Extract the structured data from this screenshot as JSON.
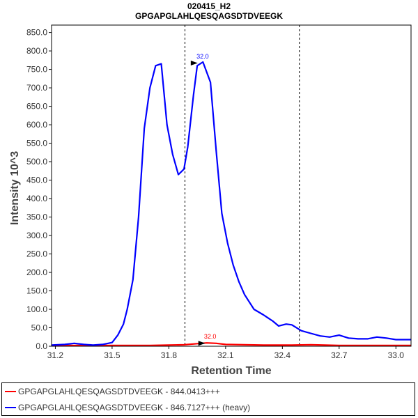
{
  "chart_data": {
    "type": "line",
    "title": "020415_H2",
    "subtitle": "GPGAPGLAHLQESQAGSDTDVEEGK",
    "xlabel": "Retention Time",
    "ylabel": "Intensity 10^3",
    "xlim": [
      31.18,
      33.08
    ],
    "ylim": [
      0,
      870
    ],
    "x_ticks": [
      31.2,
      31.5,
      31.8,
      32.1,
      32.4,
      32.7,
      33.0
    ],
    "x_tick_labels": [
      "31.2",
      "31.5",
      "31.8",
      "32.1",
      "32.4",
      "32.7",
      "33.0"
    ],
    "y_ticks": [
      0,
      50,
      100,
      150,
      200,
      250,
      300,
      350,
      400,
      450,
      500,
      550,
      600,
      650,
      700,
      750,
      800,
      850
    ],
    "y_tick_labels": [
      "0.0",
      "50.0",
      "100.0",
      "150.0",
      "200.0",
      "250.0",
      "300.0",
      "350.0",
      "400.0",
      "450.0",
      "500.0",
      "550.0",
      "600.0",
      "650.0",
      "700.0",
      "750.0",
      "800.0",
      "850.0"
    ],
    "grid": false,
    "legend_position": "bottom",
    "boundary_lines_x": [
      31.885,
      32.49
    ],
    "series": [
      {
        "name": "GPGAPGLAHLQESQAGSDTDVEEGK - 844.0413+++",
        "color": "#ff0000",
        "x": [
          31.18,
          31.3,
          31.5,
          31.7,
          31.88,
          31.95,
          32.0,
          32.05,
          32.1,
          32.2,
          32.3,
          32.45,
          32.55,
          32.7,
          32.9,
          33.08
        ],
        "y": [
          2,
          2,
          2,
          2,
          4,
          7,
          9,
          8,
          5,
          4,
          3,
          3,
          4,
          2,
          2,
          2
        ],
        "peak_label": "32.0",
        "peak_x": 32.0,
        "peak_y": 9
      },
      {
        "name": "GPGAPGLAHLQESQAGSDTDVEEGK - 846.7127+++ (heavy)",
        "color": "#0000ff",
        "x": [
          31.18,
          31.25,
          31.3,
          31.35,
          31.4,
          31.45,
          31.5,
          31.53,
          31.56,
          31.58,
          31.61,
          31.64,
          31.67,
          31.7,
          31.73,
          31.76,
          31.79,
          31.82,
          31.85,
          31.88,
          31.9,
          31.93,
          31.95,
          31.98,
          32.02,
          32.05,
          32.08,
          32.11,
          32.14,
          32.17,
          32.2,
          32.25,
          32.3,
          32.35,
          32.38,
          32.42,
          32.45,
          32.5,
          32.55,
          32.6,
          32.65,
          32.7,
          32.75,
          32.8,
          32.85,
          32.9,
          32.95,
          33.0,
          33.08
        ],
        "y": [
          3,
          5,
          8,
          5,
          3,
          5,
          10,
          30,
          60,
          100,
          180,
          350,
          590,
          700,
          760,
          765,
          600,
          520,
          465,
          480,
          540,
          680,
          760,
          770,
          715,
          530,
          360,
          280,
          220,
          175,
          140,
          100,
          85,
          68,
          55,
          60,
          58,
          42,
          35,
          28,
          25,
          30,
          22,
          20,
          20,
          25,
          22,
          18,
          18
        ],
        "peak_label": "32.0",
        "peak_x": 31.96,
        "peak_y": 768
      }
    ]
  }
}
